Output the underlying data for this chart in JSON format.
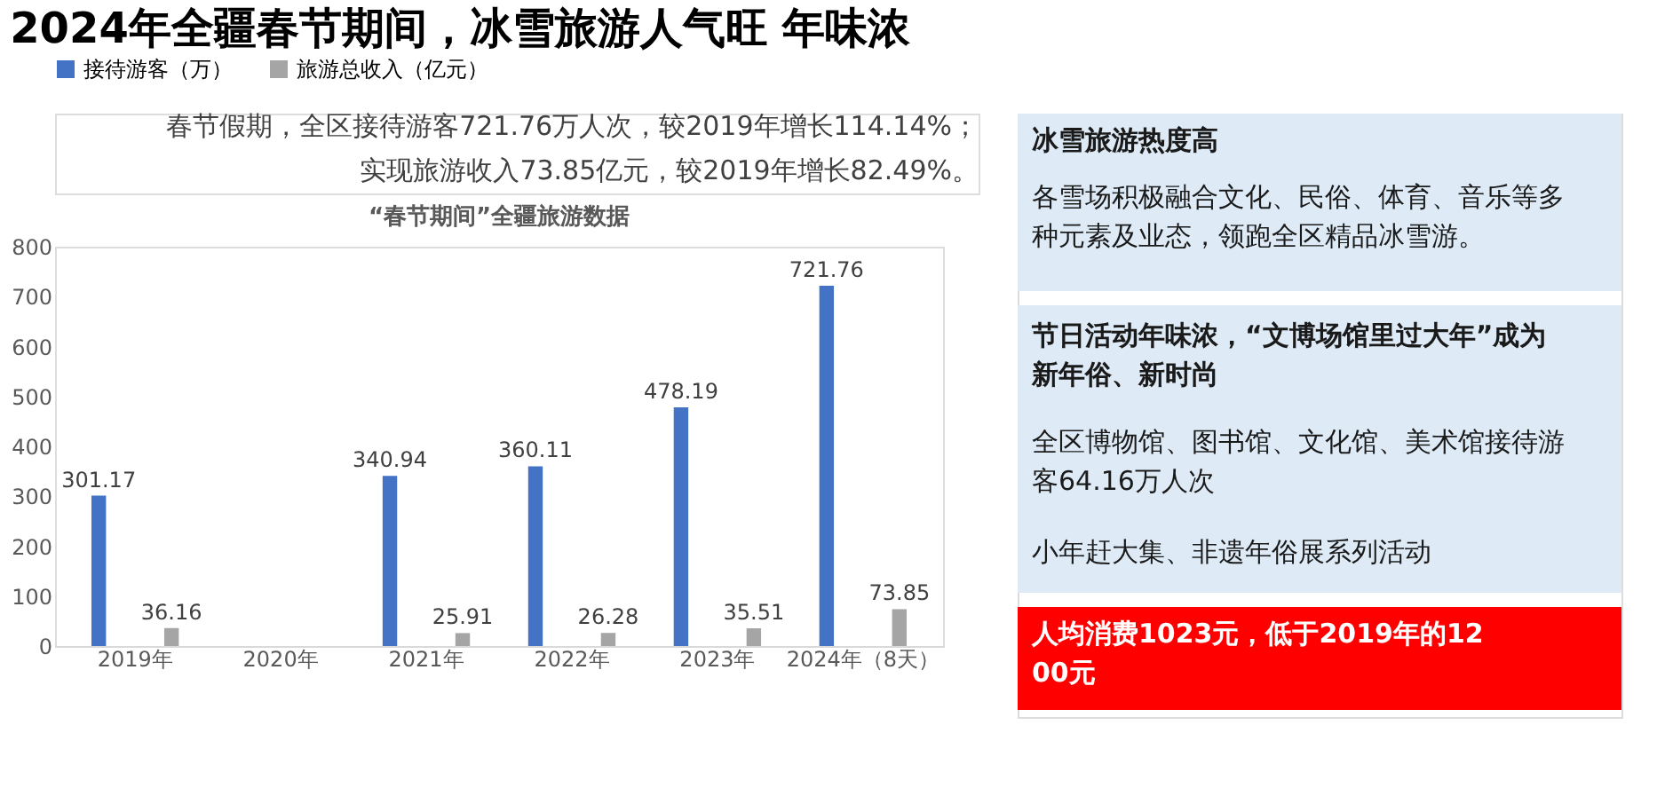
{
  "chart_data": [
    {
      "type": "bar",
      "title": "2024年全疆春节期间，冰雪旅游人气旺 年味浓",
      "subtitle": "“春节期间”全疆旅游数据",
      "annotations": [
        "春节假期，全区接待游客721.76万人次，较2019年增长114.14%；",
        "实现旅游收入73.85亿元，较2019年增长82.49%。"
      ],
      "categories": [
        "2019年",
        "2020年",
        "2021年",
        "2022年",
        "2023年",
        "2024年（8天）"
      ],
      "series": [
        {
          "name": "接待游客（万）",
          "color": "#4472c4",
          "values": [
            301.17,
            null,
            340.94,
            360.11,
            478.19,
            721.76
          ]
        },
        {
          "name": "旅游总收入（亿元）",
          "color": "#a5a5a5",
          "values": [
            36.16,
            null,
            25.91,
            26.28,
            35.51,
            73.85
          ]
        }
      ],
      "ylim": [
        0,
        800
      ],
      "yticks": [
        0,
        100,
        200,
        300,
        400,
        500,
        600,
        700,
        800
      ],
      "grid": false,
      "legend": "top",
      "data_labels": true
    },
    {
      "type": "other",
      "annotations": [
        "冰雪旅游热度高",
        "各雪场积极融合文化、民俗、体育、音乐等多种元素及业态，领跑全区精品冰雪游。",
        "节日活动年味浓，“文博场馆里过大年”成为新年俗、新时尚",
        "全区博物馆、图书馆、文化馆、美术馆接待游客64.16万人次",
        "小年赶大集、非遗年俗展系列活动",
        "人均消费1023元，低于2019年的1200元"
      ]
    }
  ]
}
